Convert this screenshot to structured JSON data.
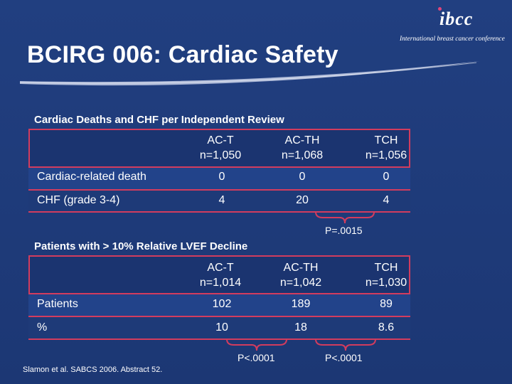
{
  "logo": {
    "mark": "ibcc",
    "tagline": "International breast cancer conference"
  },
  "title": "BCIRG 006: Cardiac Safety",
  "table1": {
    "heading": "Cardiac Deaths and CHF per Independent Review",
    "columns": [
      {
        "name": "AC-T",
        "n": "n=1,050"
      },
      {
        "name": "AC-TH",
        "n": "n=1,068"
      },
      {
        "name": "TCH",
        "n": "n=1,056"
      }
    ],
    "rows": [
      {
        "label": "Cardiac-related death",
        "values": [
          "0",
          "0",
          "0"
        ]
      },
      {
        "label": "CHF (grade 3-4)",
        "values": [
          "4",
          "20",
          "4"
        ]
      }
    ],
    "pvalue": "P=.0015"
  },
  "table2": {
    "heading": "Patients with > 10% Relative LVEF Decline",
    "columns": [
      {
        "name": "AC-T",
        "n": "n=1,014"
      },
      {
        "name": "AC-TH",
        "n": "n=1,042"
      },
      {
        "name": "TCH",
        "n": "n=1,030"
      }
    ],
    "rows": [
      {
        "label": "Patients",
        "values": [
          "102",
          "189",
          "89"
        ]
      },
      {
        "label": "%",
        "values": [
          "10",
          "18",
          "8.6"
        ]
      }
    ],
    "pvalue_left": "P<.0001",
    "pvalue_right": "P<.0001"
  },
  "citation": "Slamon et al. SABCS 2006. Abstract 52.",
  "colors": {
    "background": "#1e3a78",
    "accent": "#d23c5e"
  }
}
